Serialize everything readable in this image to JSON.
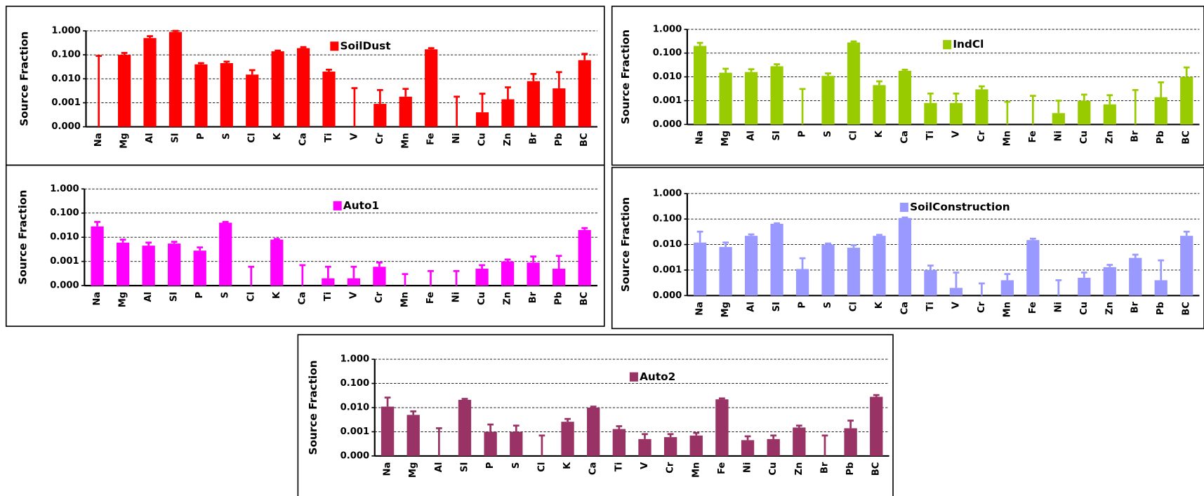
{
  "chart_data": [
    {
      "type": "bar",
      "log_scale": true,
      "grid": true,
      "ylabel": "Source Fraction",
      "categories": [
        "Na",
        "Mg",
        "Al",
        "SI",
        "P",
        "S",
        "Cl",
        "K",
        "Ca",
        "Ti",
        "V",
        "Cr",
        "Mn",
        "Fe",
        "Ni",
        "Cu",
        "Zn",
        "Br",
        "Pb",
        "BC"
      ],
      "series": [
        {
          "name": "SoilDust",
          "color": "#ff0000",
          "values": [
            0.0001,
            0.1,
            0.5,
            0.9,
            0.04,
            0.045,
            0.015,
            0.14,
            0.19,
            0.02,
            0.0001,
            0.0009,
            0.0018,
            0.17,
            0.0001,
            0.0004,
            0.0014,
            0.008,
            0.004,
            0.06
          ],
          "errors": [
            0.09,
            0.02,
            0.1,
            0.1,
            0.005,
            0.007,
            0.008,
            0.01,
            0.02,
            0.004,
            0.004,
            0.0025,
            0.002,
            0.02,
            0.0017,
            0.002,
            0.003,
            0.008,
            0.015,
            0.05
          ]
        }
      ],
      "ylim": [
        0.0001,
        1
      ],
      "yticks": [
        {
          "value": 0.0001,
          "label": "0.000"
        },
        {
          "value": 0.001,
          "label": "0.001"
        },
        {
          "value": 0.01,
          "label": "0.010"
        },
        {
          "value": 0.1,
          "label": "0.100"
        },
        {
          "value": 1,
          "label": "1.000"
        }
      ]
    },
    {
      "type": "bar",
      "log_scale": true,
      "grid": true,
      "ylabel": "Source Fraction",
      "categories": [
        "Na",
        "Mg",
        "Al",
        "SI",
        "P",
        "S",
        "Cl",
        "K",
        "Ca",
        "Ti",
        "V",
        "Cr",
        "Mn",
        "Fe",
        "Ni",
        "Cu",
        "Zn",
        "Br",
        "Pb",
        "BC"
      ],
      "series": [
        {
          "name": "IndCl",
          "color": "#99cc00",
          "values": [
            0.2,
            0.015,
            0.016,
            0.028,
            0.0001,
            0.011,
            0.28,
            0.0045,
            0.018,
            0.0008,
            0.0008,
            0.003,
            0.0001,
            0.0001,
            0.0003,
            0.001,
            0.0007,
            0.0001,
            0.0014,
            0.01
          ],
          "errors": [
            0.07,
            0.007,
            0.005,
            0.006,
            0.003,
            0.003,
            0.03,
            0.002,
            0.002,
            0.0012,
            0.0012,
            0.001,
            0.0008,
            0.0015,
            0.0007,
            0.0008,
            0.001,
            0.0027,
            0.0045,
            0.015
          ]
        }
      ],
      "ylim": [
        0.0001,
        1
      ],
      "yticks": [
        {
          "value": 0.0001,
          "label": "0.000"
        },
        {
          "value": 0.001,
          "label": "0.001"
        },
        {
          "value": 0.01,
          "label": "0.010"
        },
        {
          "value": 0.1,
          "label": "0.100"
        },
        {
          "value": 1,
          "label": "1.000"
        }
      ]
    },
    {
      "type": "bar",
      "log_scale": true,
      "grid": true,
      "ylabel": "Source Fraction",
      "categories": [
        "Na",
        "Mg",
        "Al",
        "SI",
        "P",
        "S",
        "Cl",
        "K",
        "Ca",
        "Ti",
        "V",
        "Cr",
        "Mn",
        "Fe",
        "Ni",
        "Cu",
        "Zn",
        "Br",
        "Pb",
        "BC"
      ],
      "series": [
        {
          "name": "Auto1",
          "color": "#ff00ff",
          "values": [
            0.028,
            0.006,
            0.0045,
            0.0055,
            0.0028,
            0.04,
            0.0001,
            0.008,
            0.0001,
            0.0002,
            0.0002,
            0.0006,
            0.0001,
            0.0001,
            0.0001,
            0.0005,
            0.001,
            0.0009,
            0.0005,
            0.02
          ],
          "errors": [
            0.015,
            0.002,
            0.0015,
            0.001,
            0.001,
            0.003,
            0.0005,
            0.0005,
            0.0006,
            0.0004,
            0.0004,
            0.0003,
            0.0002,
            0.0003,
            0.0003,
            0.0002,
            0.0002,
            0.0007,
            0.0012,
            0.004
          ]
        }
      ],
      "ylim": [
        0.0001,
        1
      ],
      "yticks": [
        {
          "value": 0.0001,
          "label": "0.000"
        },
        {
          "value": 0.001,
          "label": "0.001"
        },
        {
          "value": 0.01,
          "label": "0.010"
        },
        {
          "value": 0.1,
          "label": "0.100"
        },
        {
          "value": 1,
          "label": "1.000"
        }
      ]
    },
    {
      "type": "bar",
      "log_scale": true,
      "grid": true,
      "ylabel": "Source Fraction",
      "categories": [
        "Na",
        "Mg",
        "Al",
        "SI",
        "P",
        "S",
        "Cl",
        "K",
        "Ca",
        "Ti",
        "V",
        "Cr",
        "Mn",
        "Fe",
        "Ni",
        "Cu",
        "Zn",
        "Br",
        "Pb",
        "BC"
      ],
      "series": [
        {
          "name": "SoilConstruction",
          "color": "#9999ff",
          "values": [
            0.012,
            0.008,
            0.022,
            0.065,
            0.0011,
            0.01,
            0.0075,
            0.022,
            0.11,
            0.001,
            0.0002,
            0.0001,
            0.0004,
            0.015,
            0.0001,
            0.0005,
            0.0013,
            0.003,
            0.0004,
            0.022
          ],
          "errors": [
            0.02,
            0.004,
            0.003,
            0.003,
            0.0018,
            0.001,
            0.002,
            0.002,
            0.005,
            0.0005,
            0.0006,
            0.0002,
            0.0003,
            0.002,
            0.0003,
            0.0003,
            0.0003,
            0.001,
            0.002,
            0.01
          ]
        }
      ],
      "ylim": [
        0.0001,
        1
      ],
      "yticks": [
        {
          "value": 0.0001,
          "label": "0.000"
        },
        {
          "value": 0.001,
          "label": "0.001"
        },
        {
          "value": 0.01,
          "label": "0.010"
        },
        {
          "value": 0.1,
          "label": "0.100"
        },
        {
          "value": 1,
          "label": "1.000"
        }
      ]
    },
    {
      "type": "bar",
      "log_scale": true,
      "grid": true,
      "ylabel": "Source Fraction",
      "categories": [
        "Na",
        "Mg",
        "Al",
        "SI",
        "P",
        "S",
        "Cl",
        "K",
        "Ca",
        "Ti",
        "V",
        "Cr",
        "Mn",
        "Fe",
        "Ni",
        "Cu",
        "Zn",
        "Br",
        "Pb",
        "BC"
      ],
      "series": [
        {
          "name": "Auto2",
          "color": "#993366",
          "values": [
            0.011,
            0.005,
            0.0001,
            0.021,
            0.001,
            0.001,
            0.0001,
            0.0026,
            0.01,
            0.0013,
            0.0005,
            0.0006,
            0.0007,
            0.022,
            0.00045,
            0.0005,
            0.0015,
            0.0001,
            0.0014,
            0.028
          ],
          "errors": [
            0.015,
            0.002,
            0.0013,
            0.002,
            0.001,
            0.0008,
            0.0006,
            0.0008,
            0.001,
            0.0004,
            0.0003,
            0.0002,
            0.0002,
            0.002,
            0.0002,
            0.0002,
            0.0003,
            0.0006,
            0.0015,
            0.005
          ]
        }
      ],
      "ylim": [
        0.0001,
        1
      ],
      "yticks": [
        {
          "value": 0.0001,
          "label": "0.000"
        },
        {
          "value": 0.001,
          "label": "0.001"
        },
        {
          "value": 0.01,
          "label": "0.010"
        },
        {
          "value": 0.1,
          "label": "0.100"
        },
        {
          "value": 1,
          "label": "1.000"
        }
      ]
    }
  ]
}
